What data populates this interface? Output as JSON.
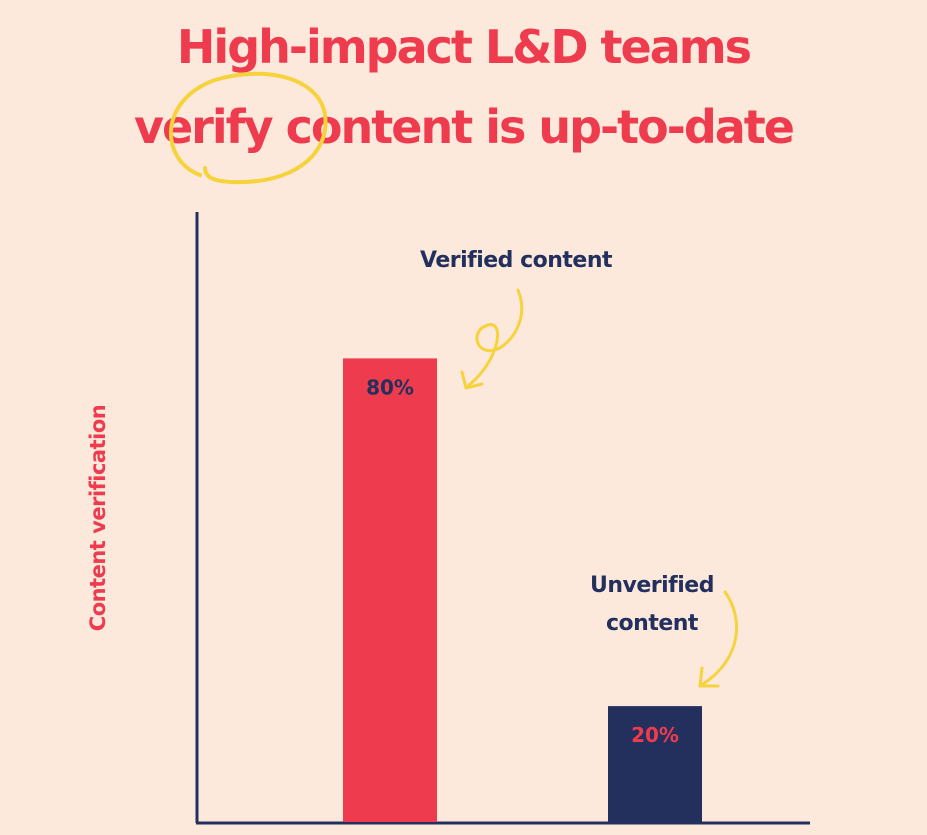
{
  "title": {
    "line1": "High-impact L&D teams",
    "line2": "verify content is up-to-date"
  },
  "colors": {
    "background": "#fce9dc",
    "accent": "#ee3b4d",
    "navy": "#23305e",
    "highlight": "#f6d33c"
  },
  "chart_data": {
    "type": "bar",
    "title": "High-impact L&D teams verify content is up-to-date",
    "xlabel": "",
    "ylabel": "Content verification",
    "ylim": [
      0,
      100
    ],
    "grid": false,
    "categories": [
      "Verified content",
      "Unverified content"
    ],
    "values": [
      80,
      20
    ],
    "data_labels": [
      "80%",
      "20%"
    ],
    "bar_colors": [
      "#ee3b4d",
      "#23305e"
    ],
    "label_colors": [
      "#23305e",
      "#ee3b4d"
    ]
  },
  "callouts": {
    "verified": "Verified content",
    "unverified_line1": "Unverified",
    "unverified_line2": "content"
  }
}
